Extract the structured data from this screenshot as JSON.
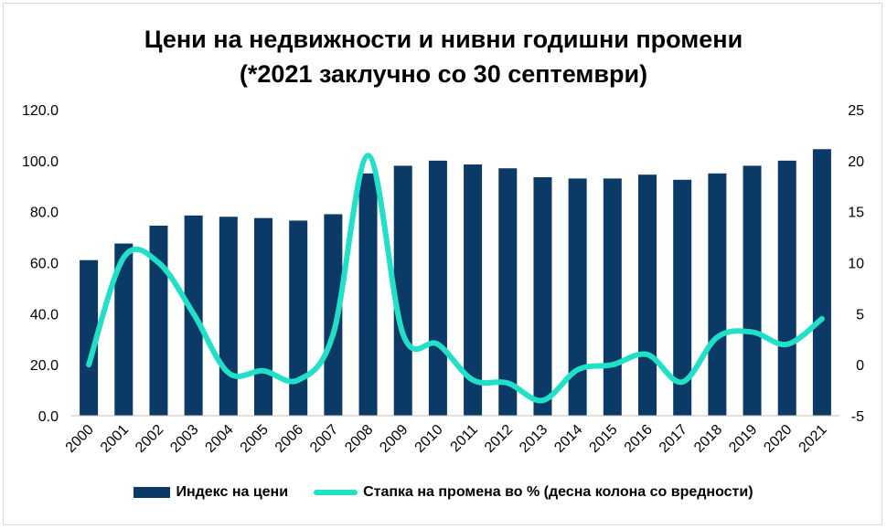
{
  "chart_data": {
    "type": "bar+line",
    "title_line1": "Цени на недвижности и нивни годишни промени",
    "title_line2": "(*2021 заклучно со 30 септември)",
    "categories": [
      "2000",
      "2001",
      "2002",
      "2003",
      "2004",
      "2005",
      "2006",
      "2007",
      "2008",
      "2009",
      "2010",
      "2011",
      "2012",
      "2013",
      "2014",
      "2015",
      "2016",
      "2017",
      "2018",
      "2019",
      "2020",
      "2021"
    ],
    "series": [
      {
        "name": "Индекс на цени",
        "type": "bar",
        "axis": "left",
        "color": "#0b3a66",
        "values": [
          61.0,
          67.5,
          74.5,
          78.5,
          78.0,
          77.5,
          76.5,
          79.0,
          95.0,
          98.0,
          100.0,
          98.5,
          97.0,
          93.5,
          93.0,
          93.0,
          94.5,
          92.5,
          95.0,
          98.0,
          100.0,
          104.5
        ]
      },
      {
        "name": "Стапка на промена во % (десна колона со вредности)",
        "type": "line",
        "axis": "right",
        "color": "#21e0c8",
        "values": [
          0.0,
          10.5,
          10.0,
          5.0,
          -0.8,
          -0.6,
          -1.5,
          3.0,
          20.5,
          3.0,
          2.0,
          -1.5,
          -1.8,
          -3.5,
          -0.5,
          0.0,
          1.0,
          -1.7,
          2.7,
          3.2,
          2.0,
          4.5
        ]
      }
    ],
    "y_left": {
      "min": 0,
      "max": 120,
      "ticks": [
        "0.0",
        "20.0",
        "40.0",
        "60.0",
        "80.0",
        "100.0",
        "120.0"
      ]
    },
    "y_right": {
      "min": -5,
      "max": 25,
      "ticks": [
        "-5",
        "0",
        "5",
        "10",
        "15",
        "20",
        "25"
      ]
    },
    "grid": false,
    "legend_position": "bottom"
  }
}
